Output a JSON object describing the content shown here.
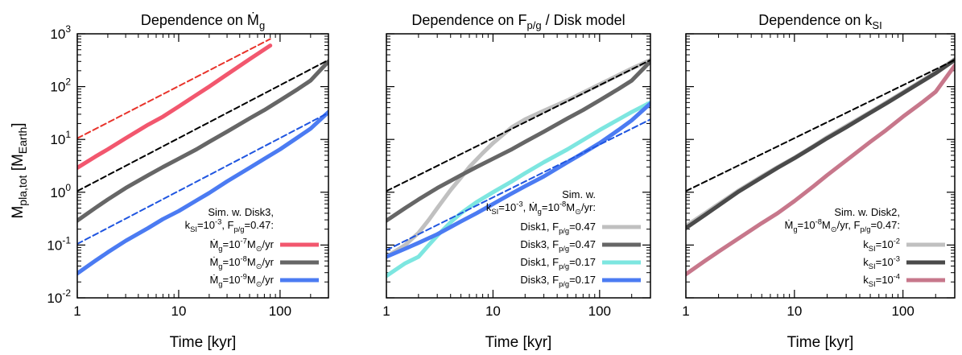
{
  "figure": {
    "ylabel_main": "M",
    "ylabel_sub": "pla,tot",
    "ylabel_unit_open": " [M",
    "ylabel_unit_sub": "Earth",
    "ylabel_unit_close": "]"
  },
  "chart_data": [
    {
      "type": "line",
      "title_text": "Dependence on Ṁ",
      "title_sub": "g",
      "xlabel": "Time [kyr]",
      "x_scale": "log",
      "y_scale": "log",
      "xlim": [
        1,
        300
      ],
      "ylim": [
        0.01,
        1000
      ],
      "x_ticks": [
        {
          "v": 1,
          "label": "1"
        },
        {
          "v": 10,
          "label": "10"
        },
        {
          "v": 100,
          "label": "100"
        }
      ],
      "y_ticks": [
        {
          "v": 0.01,
          "base": "10",
          "exp": "-2"
        },
        {
          "v": 0.1,
          "base": "10",
          "exp": "-1"
        },
        {
          "v": 1,
          "base": "10",
          "exp": "0"
        },
        {
          "v": 10,
          "base": "10",
          "exp": "1"
        },
        {
          "v": 100,
          "base": "10",
          "exp": "2"
        },
        {
          "v": 1000,
          "base": "10",
          "exp": "3"
        }
      ],
      "show_y_labels": true,
      "legend_header": [
        "Sim. w. Disk3,",
        "k_SI=10^-3, F_p/g=0.47:"
      ],
      "legend_header_rich": [
        [
          {
            "t": "Sim. w. Disk3,"
          }
        ],
        [
          {
            "t": "k"
          },
          {
            "t": "SI",
            "sub": true
          },
          {
            "t": "=10"
          },
          {
            "t": "-3",
            "sup": true
          },
          {
            "t": ", F"
          },
          {
            "t": "p/g",
            "sub": true
          },
          {
            "t": "=0.47:"
          }
        ]
      ],
      "series": [
        {
          "name": "Ṁg=10^-7 M⊙/yr",
          "legend_rich": [
            {
              "t": "Ṁ"
            },
            {
              "t": "g",
              "sub": true
            },
            {
              "t": "=10"
            },
            {
              "t": "-7",
              "sup": true
            },
            {
              "t": "M"
            },
            {
              "t": "⊙",
              "sub": true
            },
            {
              "t": "/yr"
            }
          ],
          "color": "#f2576e",
          "style": "solid",
          "x": [
            1,
            1.5,
            2,
            3,
            5,
            7,
            10,
            15,
            20,
            30,
            50,
            80
          ],
          "y": [
            2.9,
            4.7,
            6.5,
            10.5,
            19,
            27,
            42,
            70,
            100,
            170,
            330,
            600
          ]
        },
        {
          "name": "Ṁg=10^-8 M⊙/yr",
          "legend_rich": [
            {
              "t": "Ṁ"
            },
            {
              "t": "g",
              "sub": true
            },
            {
              "t": "=10"
            },
            {
              "t": "-8",
              "sup": true
            },
            {
              "t": "M"
            },
            {
              "t": "⊙",
              "sub": true
            },
            {
              "t": "/yr"
            }
          ],
          "color": "#666666",
          "style": "solid",
          "x": [
            1,
            1.5,
            2,
            3,
            5,
            7,
            10,
            15,
            20,
            30,
            50,
            70,
            100,
            150,
            200,
            300
          ],
          "y": [
            0.29,
            0.5,
            0.73,
            1.2,
            2.1,
            3.0,
            4.3,
            6.5,
            9,
            14,
            25,
            36,
            55,
            90,
            130,
            300
          ]
        },
        {
          "name": "Ṁg=10^-9 M⊙/yr",
          "legend_rich": [
            {
              "t": "Ṁ"
            },
            {
              "t": "g",
              "sub": true
            },
            {
              "t": "=10"
            },
            {
              "t": "-9",
              "sup": true
            },
            {
              "t": "M"
            },
            {
              "t": "⊙",
              "sub": true
            },
            {
              "t": "/yr"
            }
          ],
          "color": "#4b7bf2",
          "style": "solid",
          "x": [
            1,
            1.5,
            2,
            3,
            5,
            7,
            10,
            15,
            20,
            30,
            50,
            70,
            100,
            150,
            200,
            300
          ],
          "y": [
            0.029,
            0.05,
            0.073,
            0.12,
            0.21,
            0.31,
            0.44,
            0.7,
            0.97,
            1.6,
            2.9,
            4.3,
            6.5,
            11,
            16,
            33
          ]
        },
        {
          "name": "ref -7",
          "color": "#e8332b",
          "style": "dashed",
          "legend": false,
          "x": [
            1,
            80
          ],
          "y": [
            10.5,
            800
          ]
        },
        {
          "name": "ref -8",
          "color": "#000000",
          "style": "dashed",
          "legend": false,
          "x": [
            1,
            300
          ],
          "y": [
            1.05,
            320
          ]
        },
        {
          "name": "ref -9",
          "color": "#1f55e0",
          "style": "dashed",
          "legend": false,
          "x": [
            1,
            300
          ],
          "y": [
            0.105,
            32
          ]
        }
      ]
    },
    {
      "type": "line",
      "title_text": "Dependence on F",
      "title_sub": "p/g",
      "title_tail": " / Disk model",
      "xlabel": "Time [kyr]",
      "x_scale": "log",
      "y_scale": "log",
      "xlim": [
        1,
        300
      ],
      "ylim": [
        0.01,
        1000
      ],
      "x_ticks": [
        {
          "v": 1,
          "label": "1"
        },
        {
          "v": 10,
          "label": "10"
        },
        {
          "v": 100,
          "label": "100"
        }
      ],
      "y_ticks": [
        {
          "v": 0.01
        },
        {
          "v": 0.1
        },
        {
          "v": 1
        },
        {
          "v": 10
        },
        {
          "v": 100
        },
        {
          "v": 1000
        }
      ],
      "show_y_labels": false,
      "legend_header": [
        "Sim. w.",
        "k_SI=10^-3, Ṁg=10^-8 M⊙/yr:"
      ],
      "legend_header_rich": [
        [
          {
            "t": "Sim. w."
          }
        ],
        [
          {
            "t": "k"
          },
          {
            "t": "SI",
            "sub": true
          },
          {
            "t": "=10"
          },
          {
            "t": "-3",
            "sup": true
          },
          {
            "t": ", Ṁ"
          },
          {
            "t": "g",
            "sub": true
          },
          {
            "t": "=10"
          },
          {
            "t": "-8",
            "sup": true
          },
          {
            "t": "M"
          },
          {
            "t": "⊙",
            "sub": true
          },
          {
            "t": "/yr:"
          }
        ]
      ],
      "series": [
        {
          "name": "Disk1, F_p/g=0.47",
          "legend_rich": [
            {
              "t": "Disk1, F"
            },
            {
              "t": "p/g",
              "sub": true
            },
            {
              "t": "=0.47"
            }
          ],
          "color": "#c0c0c0",
          "style": "solid",
          "x": [
            1,
            1.5,
            2,
            2.5,
            3,
            4,
            5,
            6,
            8,
            10,
            15,
            20,
            30,
            50,
            100,
            200,
            300
          ],
          "y": [
            0.06,
            0.1,
            0.17,
            0.3,
            0.5,
            1.1,
            1.9,
            3.0,
            5.5,
            8.5,
            17,
            24,
            35,
            55,
            110,
            220,
            320
          ]
        },
        {
          "name": "Disk3, F_p/g=0.47",
          "legend_rich": [
            {
              "t": "Disk3, F"
            },
            {
              "t": "p/g",
              "sub": true
            },
            {
              "t": "=0.47"
            }
          ],
          "color": "#666666",
          "style": "solid",
          "x": [
            1,
            1.5,
            2,
            3,
            5,
            7,
            10,
            15,
            20,
            30,
            50,
            70,
            100,
            150,
            200,
            300
          ],
          "y": [
            0.29,
            0.5,
            0.73,
            1.2,
            2.1,
            3.0,
            4.3,
            6.5,
            9,
            14,
            25,
            36,
            55,
            90,
            130,
            300
          ]
        },
        {
          "name": "Disk1, F_p/g=0.17",
          "legend_rich": [
            {
              "t": "Disk1, F"
            },
            {
              "t": "p/g",
              "sub": true
            },
            {
              "t": "=0.17"
            }
          ],
          "color": "#7de6e0",
          "style": "solid",
          "x": [
            1,
            1.5,
            2,
            2.5,
            3,
            4,
            5,
            7,
            10,
            15,
            20,
            30,
            50,
            100,
            200,
            300
          ],
          "y": [
            0.026,
            0.045,
            0.06,
            0.1,
            0.15,
            0.27,
            0.4,
            0.65,
            1.0,
            1.6,
            2.3,
            3.7,
            6.5,
            15,
            33,
            50
          ]
        },
        {
          "name": "Disk3, F_p/g=0.17",
          "legend_rich": [
            {
              "t": "Disk3, F"
            },
            {
              "t": "p/g",
              "sub": true
            },
            {
              "t": "=0.17"
            }
          ],
          "color": "#4b7bf2",
          "style": "solid",
          "x": [
            1,
            1.5,
            2,
            3,
            5,
            7,
            10,
            15,
            20,
            30,
            50,
            70,
            100,
            150,
            200,
            300
          ],
          "y": [
            0.06,
            0.085,
            0.11,
            0.16,
            0.28,
            0.4,
            0.6,
            0.95,
            1.3,
            2.0,
            3.7,
            5.5,
            8.5,
            15,
            23,
            48
          ]
        },
        {
          "name": "ref 0.47",
          "color": "#000000",
          "style": "dashed",
          "legend": false,
          "x": [
            1,
            300
          ],
          "y": [
            1.05,
            320
          ]
        },
        {
          "name": "ref 0.17",
          "color": "#1f55e0",
          "style": "dashed",
          "legend": false,
          "x": [
            1,
            300
          ],
          "y": [
            0.08,
            24
          ]
        }
      ]
    },
    {
      "type": "line",
      "title_text": "Dependence on k",
      "title_sub": "SI",
      "xlabel": "Time [kyr]",
      "x_scale": "log",
      "y_scale": "log",
      "xlim": [
        1,
        300
      ],
      "ylim": [
        0.01,
        1000
      ],
      "x_ticks": [
        {
          "v": 1,
          "label": "1"
        },
        {
          "v": 10,
          "label": "10"
        },
        {
          "v": 100,
          "label": "100"
        }
      ],
      "y_ticks": [
        {
          "v": 0.01
        },
        {
          "v": 0.1
        },
        {
          "v": 1
        },
        {
          "v": 10
        },
        {
          "v": 100
        },
        {
          "v": 1000
        }
      ],
      "show_y_labels": false,
      "legend_header": [
        "Sim. w. Disk2,",
        "Ṁg=10^-8 M⊙/yr, F_p/g=0.47:"
      ],
      "legend_header_rich": [
        [
          {
            "t": "Sim. w. Disk2,"
          }
        ],
        [
          {
            "t": "Ṁ"
          },
          {
            "t": "g",
            "sub": true
          },
          {
            "t": "=10"
          },
          {
            "t": "-8",
            "sup": true
          },
          {
            "t": "M"
          },
          {
            "t": "⊙",
            "sub": true
          },
          {
            "t": "/yr, F"
          },
          {
            "t": "p/g",
            "sub": true
          },
          {
            "t": "=0.47:"
          }
        ]
      ],
      "series": [
        {
          "name": "k_SI=10^-2",
          "legend_rich": [
            {
              "t": "k"
            },
            {
              "t": "SI",
              "sub": true
            },
            {
              "t": "=10"
            },
            {
              "t": "-2",
              "sup": true
            }
          ],
          "color": "#c0c0c0",
          "style": "solid",
          "x": [
            1,
            1.5,
            2,
            3,
            5,
            7,
            10,
            15,
            20,
            30,
            50,
            70,
            100,
            150,
            200,
            300
          ],
          "y": [
            0.23,
            0.4,
            0.6,
            1.05,
            2.0,
            3.0,
            4.5,
            7.5,
            11,
            18,
            33,
            50,
            78,
            130,
            190,
            330
          ]
        },
        {
          "name": "k_SI=10^-3",
          "legend_rich": [
            {
              "t": "k"
            },
            {
              "t": "SI",
              "sub": true
            },
            {
              "t": "=10"
            },
            {
              "t": "-3",
              "sup": true
            }
          ],
          "color": "#4a4a4a",
          "style": "solid",
          "x": [
            1,
            1.5,
            2,
            3,
            5,
            7,
            10,
            15,
            20,
            30,
            50,
            70,
            100,
            150,
            200,
            300
          ],
          "y": [
            0.21,
            0.37,
            0.56,
            1.0,
            1.9,
            2.9,
            4.4,
            7.3,
            10.5,
            17,
            32,
            48,
            75,
            125,
            180,
            320
          ]
        },
        {
          "name": "k_SI=10^-4",
          "legend_rich": [
            {
              "t": "k"
            },
            {
              "t": "SI",
              "sub": true
            },
            {
              "t": "=10"
            },
            {
              "t": "-4",
              "sup": true
            }
          ],
          "color": "#c7778b",
          "style": "solid",
          "x": [
            1,
            1.5,
            2,
            3,
            5,
            7,
            10,
            15,
            20,
            30,
            50,
            70,
            100,
            150,
            200,
            300
          ],
          "y": [
            0.028,
            0.05,
            0.075,
            0.13,
            0.26,
            0.4,
            0.68,
            1.3,
            2.1,
            4.0,
            9.0,
            15,
            27,
            50,
            80,
            250
          ]
        },
        {
          "name": "ref k",
          "color": "#000000",
          "style": "dashed",
          "legend": false,
          "x": [
            1,
            300
          ],
          "y": [
            1.05,
            320
          ]
        }
      ]
    }
  ]
}
